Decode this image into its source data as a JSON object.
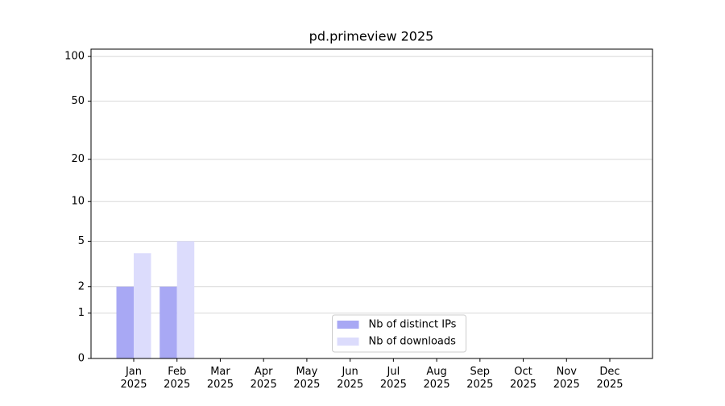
{
  "chart_data": {
    "type": "bar",
    "title": "pd.primeview 2025",
    "categories": [
      "Jan 2025",
      "Feb 2025",
      "Mar 2025",
      "Apr 2025",
      "May 2025",
      "Jun 2025",
      "Jul 2025",
      "Aug 2025",
      "Sep 2025",
      "Oct 2025",
      "Nov 2025",
      "Dec 2025"
    ],
    "series": [
      {
        "name": "Nb of distinct IPs",
        "color": "#a8a8f4",
        "values": [
          2,
          2,
          0,
          0,
          0,
          0,
          0,
          0,
          0,
          0,
          0,
          0
        ]
      },
      {
        "name": "Nb of downloads",
        "color": "#dcdcfc",
        "values": [
          4,
          5,
          0,
          0,
          0,
          0,
          0,
          0,
          0,
          0,
          0,
          0
        ]
      }
    ],
    "yscale": "log1p",
    "ylim": [
      0,
      112
    ],
    "yticks": [
      0,
      1,
      2,
      5,
      10,
      20,
      50,
      100
    ],
    "grid": true,
    "legend": "lower center"
  }
}
